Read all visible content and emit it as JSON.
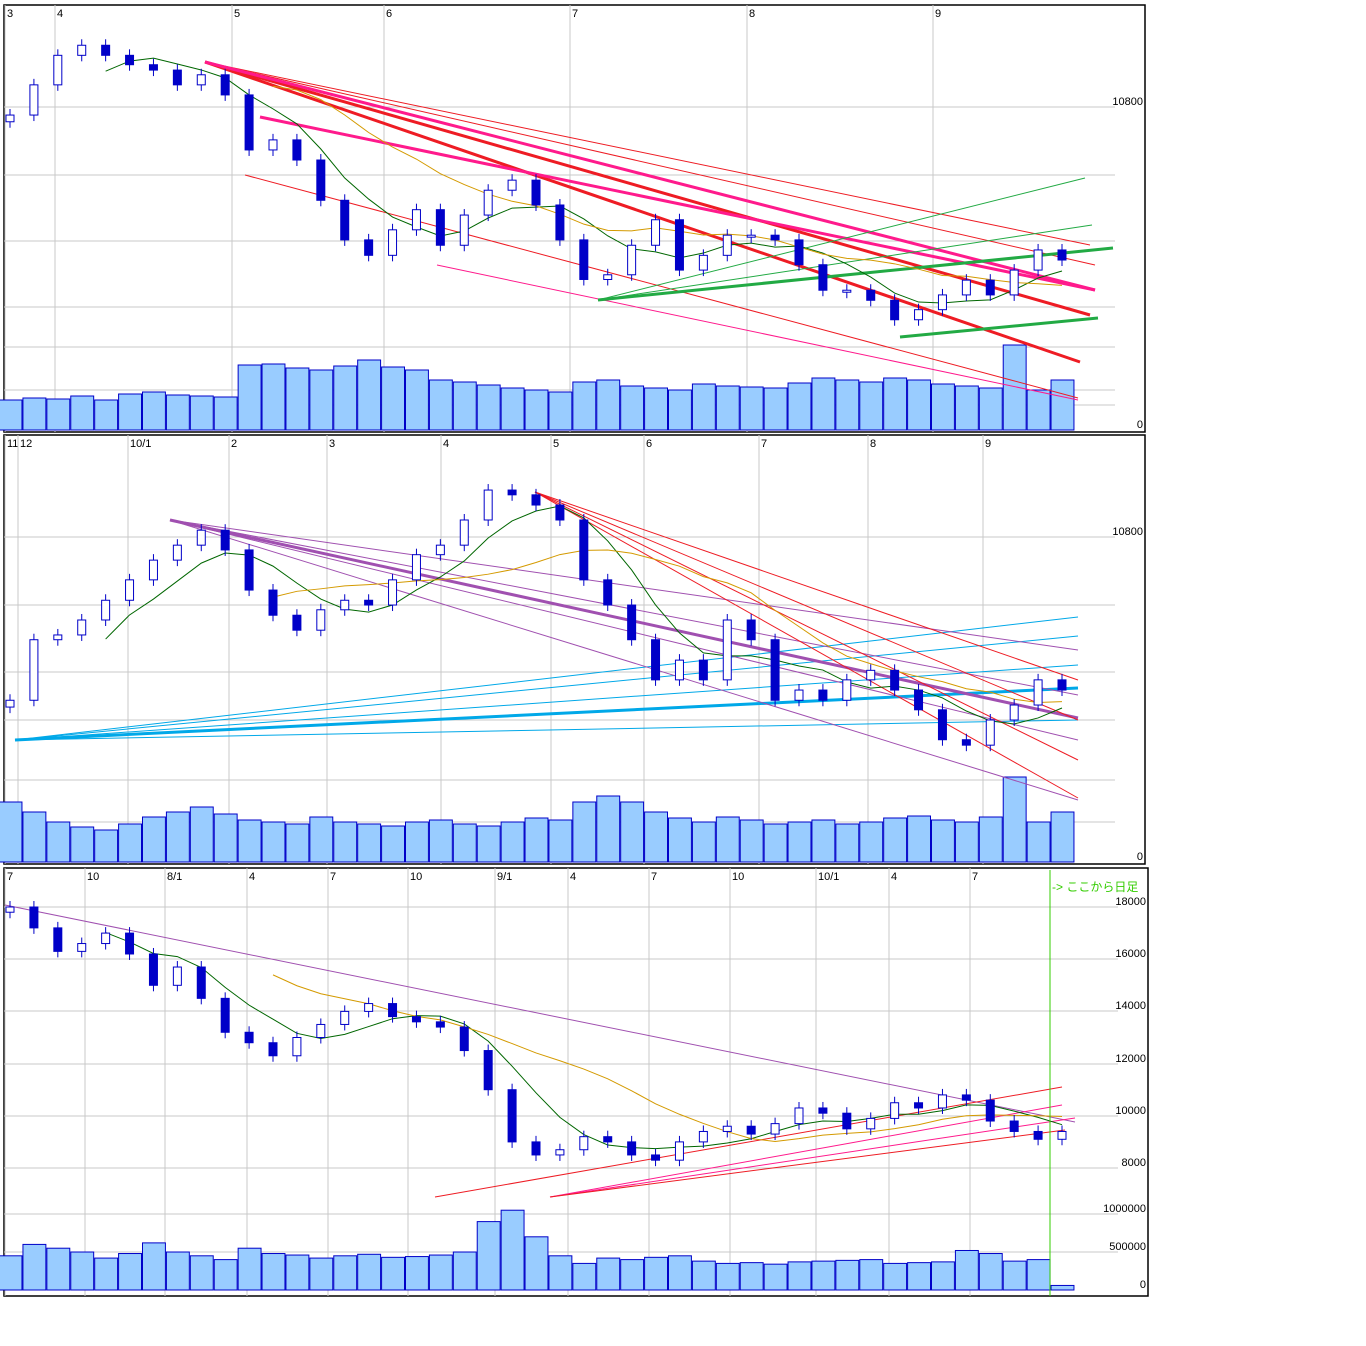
{
  "colors": {
    "candle_down": "#0000c8",
    "candle_up_fill": "#ffffff",
    "volume": "#99ccff",
    "ma_short": "#006600",
    "ma_long": "#d49a00",
    "trend_red": "#ee1c24",
    "trend_pink": "#ff1a8c",
    "trend_green": "#22aa44",
    "trend_purple": "#a050b0",
    "trend_cyan": "#00a8e8",
    "grid": "#c8c8c8",
    "note": "#33cc00"
  },
  "chart_data": [
    {
      "type": "candlestick",
      "x_tick_labels": [
        "3",
        "4",
        "5",
        "6",
        "7",
        "8",
        "9"
      ],
      "y_tick_labels": [
        "10800"
      ],
      "volume_tick_labels": [
        "0"
      ],
      "grid": true,
      "close": [
        10788,
        10833,
        10877,
        10892,
        10877,
        10863,
        10855,
        10833,
        10848,
        10818,
        10736,
        10751,
        10721,
        10661,
        10602,
        10579,
        10617,
        10647,
        10594,
        10639,
        10676,
        10691,
        10654,
        10602,
        10543,
        10550,
        10594,
        10632,
        10557,
        10579,
        10609,
        10609,
        10602,
        10565,
        10527,
        10527,
        10512,
        10483,
        10498,
        10520,
        10542,
        10520,
        10557,
        10587,
        10572
      ],
      "volume": [
        30,
        32,
        31,
        34,
        30,
        36,
        38,
        35,
        34,
        33,
        65,
        66,
        62,
        60,
        64,
        70,
        63,
        60,
        50,
        48,
        45,
        42,
        40,
        38,
        48,
        50,
        44,
        42,
        40,
        46,
        44,
        43,
        42,
        47,
        52,
        50,
        48,
        52,
        50,
        46,
        44,
        42,
        85,
        40,
        50
      ]
    },
    {
      "type": "candlestick",
      "x_tick_labels": [
        "11",
        "12",
        "10/1",
        "2",
        "3",
        "4",
        "5",
        "6",
        "7",
        "8",
        "9"
      ],
      "y_tick_labels": [
        "10800"
      ],
      "volume_tick_labels": [
        "0"
      ],
      "grid": true,
      "close": [
        10560,
        10649,
        10656,
        10678,
        10707,
        10737,
        10766,
        10788,
        10810,
        10781,
        10722,
        10685,
        10663,
        10693,
        10707,
        10700,
        10737,
        10774,
        10788,
        10825,
        10869,
        10862,
        10847,
        10825,
        10737,
        10700,
        10649,
        10590,
        10619,
        10590,
        10678,
        10649,
        10560,
        10575,
        10560,
        10590,
        10604,
        10575,
        10546,
        10502,
        10494,
        10531,
        10553,
        10590,
        10575
      ],
      "volume": [
        60,
        50,
        40,
        35,
        32,
        38,
        45,
        50,
        55,
        48,
        42,
        40,
        38,
        45,
        40,
        38,
        36,
        40,
        42,
        38,
        36,
        40,
        44,
        42,
        60,
        66,
        60,
        50,
        44,
        40,
        45,
        42,
        38,
        40,
        42,
        38,
        40,
        44,
        46,
        42,
        40,
        45,
        85,
        40,
        50
      ]
    },
    {
      "type": "candlestick",
      "x_tick_labels": [
        "7",
        "10",
        "8/1",
        "4",
        "7",
        "10",
        "9/1",
        "4",
        "7",
        "10",
        "10/1",
        "4",
        "7"
      ],
      "y_tick_labels": [
        "18000",
        "16000",
        "14000",
        "12000",
        "10000",
        "8000"
      ],
      "y_range": [
        8000,
        18000
      ],
      "volume_tick_labels": [
        "1000000",
        "500000",
        "0"
      ],
      "annotation": "-> ここから日足",
      "grid": true,
      "close": [
        18000,
        17200,
        16300,
        16600,
        17000,
        16200,
        15000,
        15700,
        14500,
        13200,
        12800,
        12300,
        13000,
        13500,
        14000,
        14300,
        13800,
        13600,
        13400,
        12500,
        11000,
        9000,
        8500,
        8700,
        9200,
        9000,
        8500,
        8300,
        9000,
        9400,
        9600,
        9300,
        9700,
        10300,
        10100,
        9500,
        9900,
        10500,
        10300,
        10800,
        10600,
        9800,
        9400,
        9100,
        9400
      ],
      "volume": [
        450000,
        600000,
        550000,
        500000,
        420000,
        480000,
        620000,
        500000,
        450000,
        400000,
        550000,
        480000,
        460000,
        420000,
        450000,
        470000,
        430000,
        440000,
        460000,
        500000,
        900000,
        1050000,
        700000,
        450000,
        350000,
        420000,
        400000,
        430000,
        450000,
        380000,
        350000,
        360000,
        340000,
        370000,
        380000,
        390000,
        400000,
        350000,
        360000,
        370000,
        520000,
        480000,
        380000,
        400000,
        60000
      ]
    }
  ]
}
